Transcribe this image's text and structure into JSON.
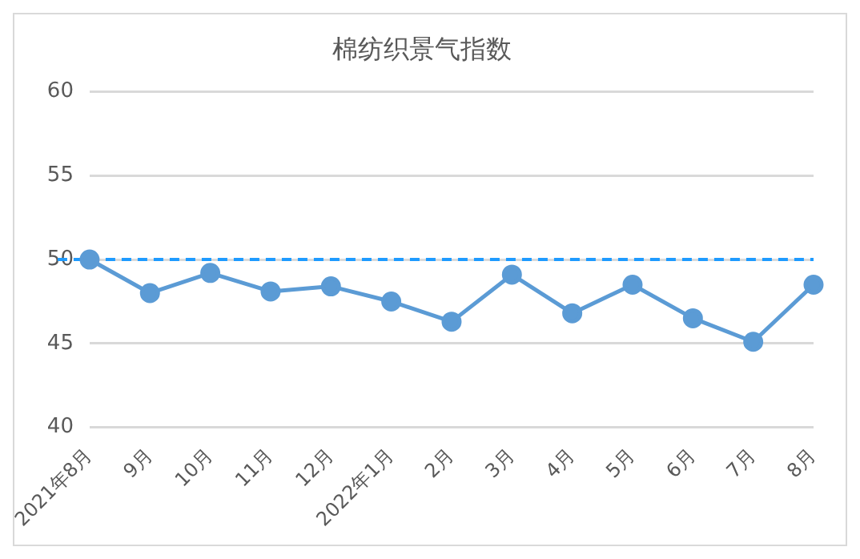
{
  "chart_data": {
    "type": "line",
    "title": "棉纺织景气指数",
    "categories": [
      "2021年8月",
      "9月",
      "10月",
      "11月",
      "12月",
      "2022年1月",
      "2月",
      "3月",
      "4月",
      "5月",
      "6月",
      "7月",
      "8月"
    ],
    "series": [
      {
        "color": "#5b9bd5",
        "values": [
          50.0,
          48.0,
          49.2,
          48.1,
          48.4,
          47.5,
          46.3,
          49.1,
          46.8,
          48.5,
          46.5,
          45.1,
          48.5
        ]
      }
    ],
    "ylim": [
      40,
      60
    ],
    "yticks": [
      40,
      45,
      50,
      55,
      60
    ],
    "grid": "y",
    "marker": "circle",
    "line_style": "solid",
    "legend": false,
    "ref_lines": [
      {
        "axis": "y",
        "value": 50,
        "color": "#1e9bff",
        "line_style": "dashed"
      }
    ]
  }
}
